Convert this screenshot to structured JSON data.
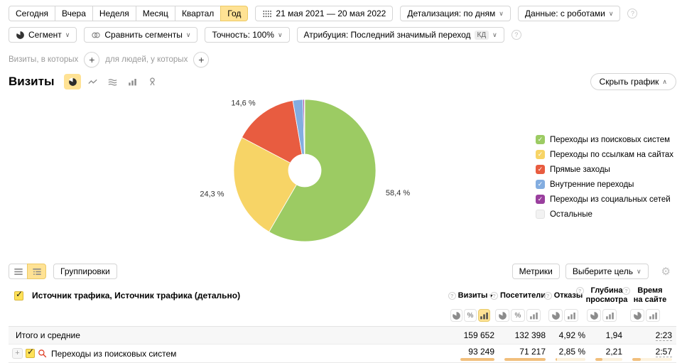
{
  "colors": {
    "accent": "#ffe294",
    "bar_track": "#fdf2de",
    "bar_fill": "#f1bf7d"
  },
  "toolbar": {
    "periods": [
      "Сегодня",
      "Вчера",
      "Неделя",
      "Месяц",
      "Квартал",
      "Год"
    ],
    "active_period": "Год",
    "date_range": "21 мая 2021 — 20 мая 2022",
    "detalization": "Детализация: по дням",
    "data_mode": "Данные: с роботами"
  },
  "segment_bar": {
    "segment": "Сегмент",
    "compare": "Сравнить сегменты",
    "precision": "Точность: 100%",
    "attribution": "Атрибуция: Последний значимый переход",
    "attribution_badge": "КД"
  },
  "filter_row": {
    "visits": "Визиты, в которых",
    "people": "для людей, у которых"
  },
  "chart_header": {
    "title": "Визиты",
    "hide_chart": "Скрыть график",
    "chart_types": [
      {
        "icon": "pie-chart-icon",
        "active": true
      },
      {
        "icon": "line-chart-icon",
        "active": false
      },
      {
        "icon": "stacked-chart-icon",
        "active": false
      },
      {
        "icon": "columns-chart-icon",
        "active": false
      },
      {
        "icon": "map-chart-icon",
        "active": false
      }
    ]
  },
  "chart_data": {
    "type": "pie",
    "donut": true,
    "unit": "%",
    "title": "Визиты",
    "legend_position": "right",
    "slices": [
      {
        "name": "Переходы из поисковых систем",
        "value": 58.4,
        "label": "58,4 %",
        "color": "#9ccb63",
        "checked": true
      },
      {
        "name": "Переходы по ссылкам на сайтах",
        "value": 24.3,
        "label": "24,3 %",
        "color": "#f7d466",
        "checked": true
      },
      {
        "name": "Прямые заходы",
        "value": 14.6,
        "label": "14,6 %",
        "color": "#e85c40",
        "checked": true
      },
      {
        "name": "Внутренние переходы",
        "value": 2.3,
        "label": "",
        "color": "#83ade0",
        "checked": true
      },
      {
        "name": "Переходы из социальных сетей",
        "value": 0.3,
        "label": "",
        "color": "#9a3f9e",
        "checked": true
      },
      {
        "name": "Остальные",
        "value": 0.1,
        "label": "",
        "color": "#eeeeee",
        "checked": false
      }
    ]
  },
  "table": {
    "toolbar": {
      "groupings": "Группировки",
      "metrics": "Метрики",
      "goal": "Выберите цель"
    },
    "group_column": "Источник трафика, Источник трафика (детально)",
    "columns": [
      {
        "label": "Визиты",
        "sort": true,
        "toggles": [
          "pie",
          "percent",
          "bars"
        ],
        "active": "bars"
      },
      {
        "label": "Посетители",
        "sort": false,
        "toggles": [
          "pie",
          "percent",
          "bars"
        ],
        "active": ""
      },
      {
        "label": "Отказы",
        "sort": false,
        "toggles": [
          "pie",
          "bars"
        ],
        "active": ""
      },
      {
        "label": "Глубина просмотра",
        "sort": false,
        "toggles": [
          "pie",
          "bars"
        ],
        "active": ""
      },
      {
        "label": "Время на сайте",
        "sort": false,
        "toggles": [
          "pie",
          "bars"
        ],
        "active": ""
      }
    ],
    "totals": {
      "label": "Итого и средние",
      "values": [
        "159 652",
        "132 398",
        "4,92 %",
        "1,94",
        "2:23"
      ]
    },
    "rows": [
      {
        "label": "Переходы из поисковых систем",
        "values": [
          "93 249",
          "71 217",
          "2,85 %",
          "2,21",
          "2:57"
        ],
        "bars": [
          100,
          100,
          5,
          26,
          21
        ]
      }
    ]
  }
}
